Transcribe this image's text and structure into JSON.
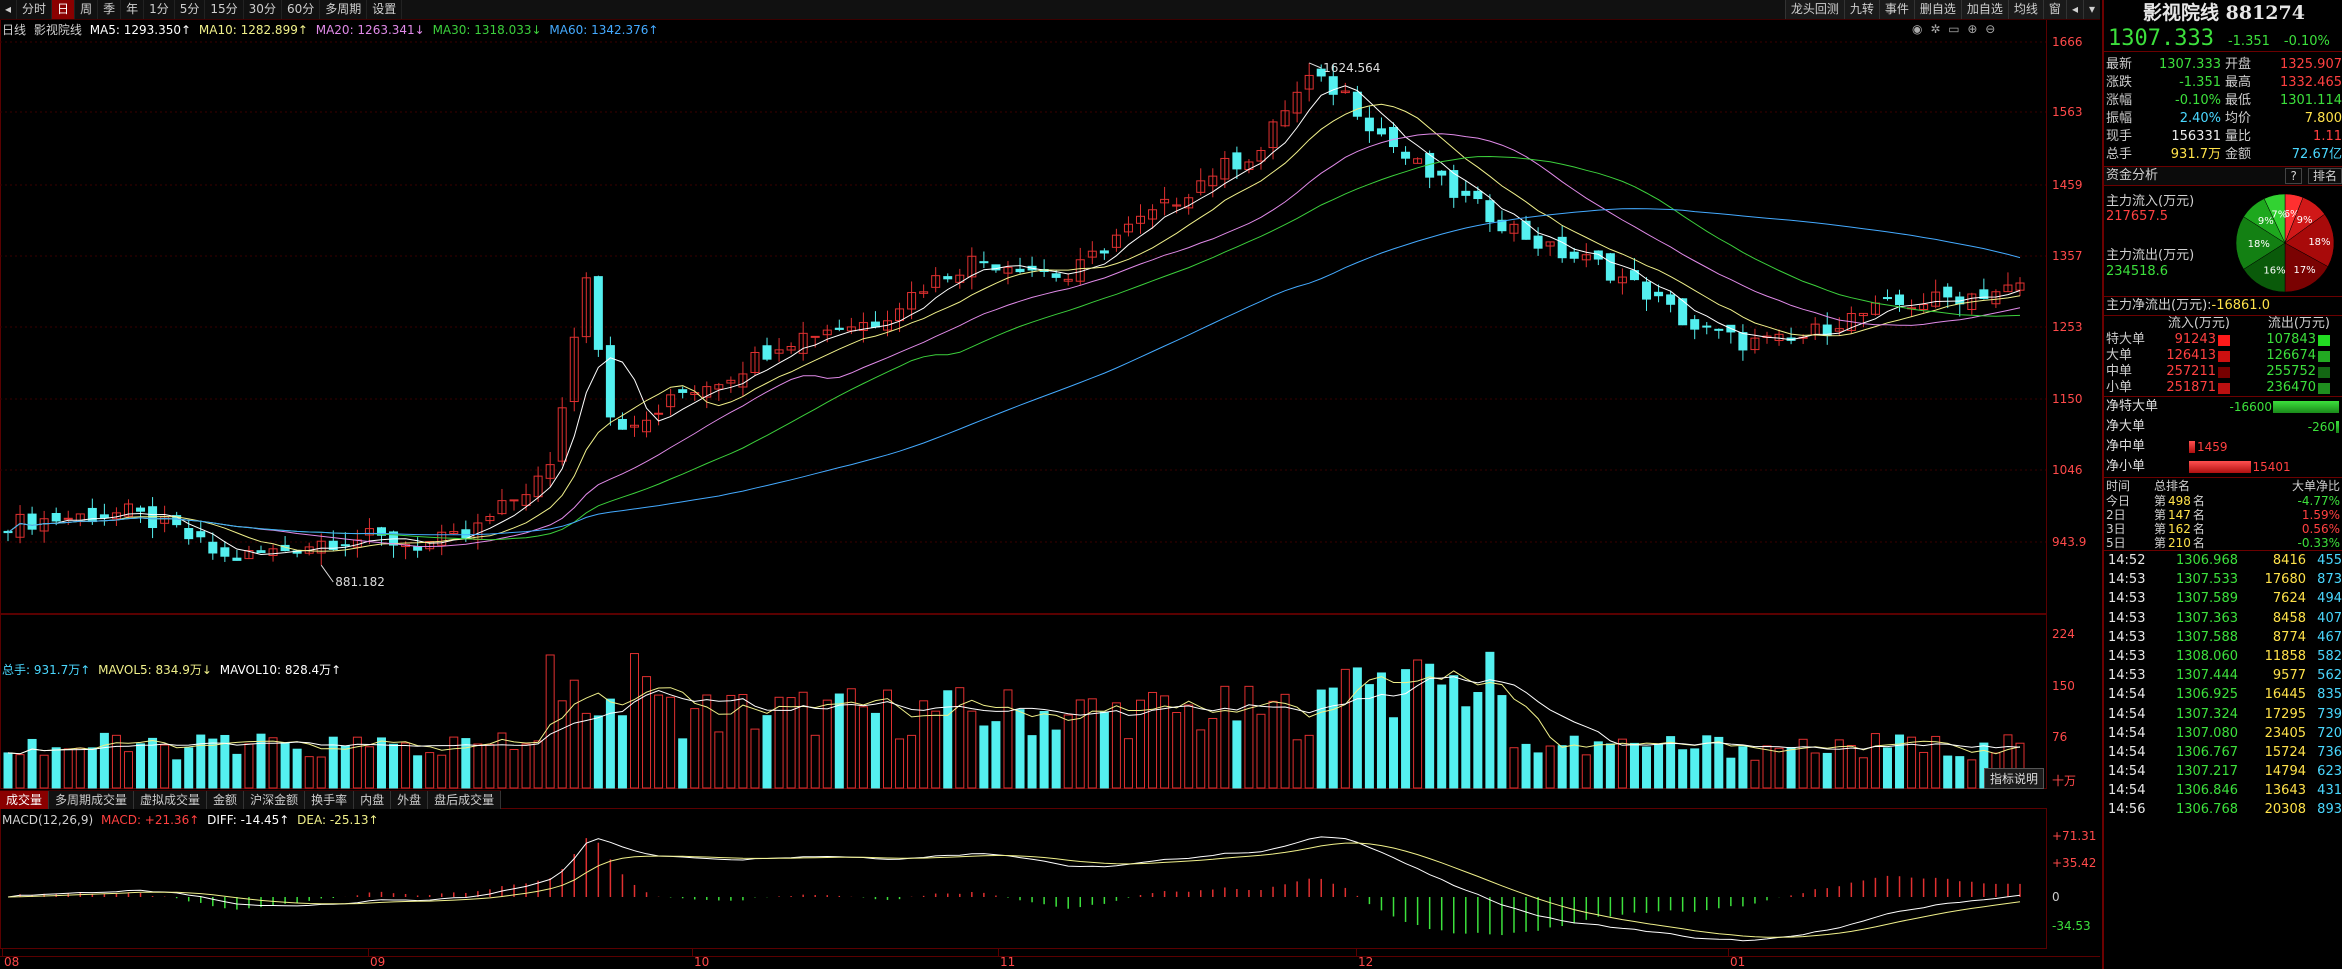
{
  "toolbar": {
    "periods": [
      "分时",
      "日",
      "周",
      "季",
      "年",
      "1分",
      "5分",
      "15分",
      "30分",
      "60分",
      "多周期",
      "设置"
    ],
    "active_period": "日",
    "right_buttons": [
      "龙头回测",
      "九转",
      "事件",
      "删自选",
      "加自选",
      "均线",
      "窗",
      "◂",
      "▾"
    ]
  },
  "kline_legend": {
    "label": "日线",
    "name": "影视院线",
    "ma5": "MA5: 1293.350↑",
    "ma10": "MA10: 1282.899↑",
    "ma20": "MA20: 1263.341↓",
    "ma30": "MA30: 1318.033↓",
    "ma60": "MA60: 1342.376↑"
  },
  "colors": {
    "up": "#e03030",
    "down": "#54f0f0",
    "ma5": "#ffffff",
    "ma10": "#f0f08a",
    "ma20": "#e08ae8",
    "ma30": "#3cd03c",
    "ma60": "#44aaff",
    "grid": "#5a0000"
  },
  "annotations": {
    "high": "1624.564",
    "low": "881.182"
  },
  "price_axis": [
    "1666",
    "1563",
    "1459",
    "1357",
    "1253",
    "1150",
    "1046",
    "943.9"
  ],
  "volume_legend": {
    "total": "总手: 931.7万↑",
    "mavol5": "MAVOL5: 834.9万↓",
    "mavol10": "MAVOL10: 828.4万↑"
  },
  "volume_axis": [
    "224",
    "150",
    "76",
    "十万"
  ],
  "indicator_tabs": [
    "成交量",
    "多周期成交量",
    "虚拟成交量",
    "金额",
    "沪深金额",
    "换手率",
    "内盘",
    "外盘",
    "盘后成交量"
  ],
  "active_indicator": "成交量",
  "help_button": "指标说明",
  "macd_legend": {
    "name": "MACD(12,26,9)",
    "macd": "MACD: +21.36↑",
    "diff": "DIFF: -14.45↑",
    "dea": "DEA: -25.13↑"
  },
  "macd_axis": [
    "+71.31",
    "+35.42",
    "0",
    "-34.53"
  ],
  "date_axis": [
    "08",
    "09",
    "10",
    "11",
    "12",
    "01"
  ],
  "panel": {
    "title": "影视院线 881274",
    "price": "1307.333",
    "change": "-1.351",
    "change_pct": "-0.10%",
    "quote": [
      {
        "l1": "最新",
        "v1": "1307.333",
        "c1": "green",
        "l2": "开盘",
        "v2": "1325.907",
        "c2": "red"
      },
      {
        "l1": "涨跌",
        "v1": "-1.351",
        "c1": "green",
        "l2": "最高",
        "v2": "1332.465",
        "c2": "red"
      },
      {
        "l1": "涨幅",
        "v1": "-0.10%",
        "c1": "green",
        "l2": "最低",
        "v2": "1301.114",
        "c2": "green"
      },
      {
        "l1": "振幅",
        "v1": "2.40%",
        "c1": "cyan",
        "l2": "均价",
        "v2": "7.800",
        "c2": "yellow"
      },
      {
        "l1": "现手",
        "v1": "156331",
        "c1": "white",
        "l2": "量比",
        "v2": "1.11",
        "c2": "red"
      },
      {
        "l1": "总手",
        "v1": "931.7万",
        "c1": "yellow",
        "l2": "金额",
        "v2": "72.67亿",
        "c2": "cyan"
      }
    ],
    "fund_title": "资金分析",
    "fund_q": "?",
    "fund_rank": "排名",
    "inflow_label": "主力流入(万元)",
    "inflow": "217657.5",
    "outflow_label": "主力流出(万元)",
    "outflow": "234518.6",
    "net_label": "主力净流出(万元):",
    "net": "-16861.0",
    "pie": [
      {
        "label": "6%",
        "pct": 6,
        "color": "#ff3030"
      },
      {
        "label": "9%",
        "pct": 9,
        "color": "#d01818"
      },
      {
        "label": "18%",
        "pct": 18,
        "color": "#a80a0a"
      },
      {
        "label": "17%",
        "pct": 17,
        "color": "#7a0202"
      },
      {
        "label": "16%",
        "pct": 16,
        "color": "#0a5a0a"
      },
      {
        "label": "18%",
        "pct": 18,
        "color": "#138013"
      },
      {
        "label": "9%",
        "pct": 9,
        "color": "#1ea81e"
      },
      {
        "label": "7%",
        "pct": 7,
        "color": "#32d232"
      }
    ],
    "flow_head": [
      "流入(万元)",
      "流出(万元)"
    ],
    "flows": [
      {
        "name": "特大单",
        "in": "91243",
        "out": "107843",
        "in_color": "#ff1a1a",
        "out_color": "#22dd22"
      },
      {
        "name": "大单",
        "in": "126413",
        "out": "126674",
        "in_color": "#cc1010",
        "out_color": "#22aa22"
      },
      {
        "name": "中单",
        "in": "257211",
        "out": "255752",
        "in_color": "#770000",
        "out_color": "#136613"
      },
      {
        "name": "小单",
        "in": "251871",
        "out": "236470",
        "in_color": "#bb1010",
        "out_color": "#1f8f1f"
      }
    ],
    "net_rows": [
      {
        "name": "净特大单",
        "value": "-16600",
        "dir": "neg",
        "frac": 0.44
      },
      {
        "name": "净大单",
        "value": "-260",
        "dir": "neg",
        "frac": 0.02
      },
      {
        "name": "净中单",
        "value": "1459",
        "dir": "pos",
        "frac": 0.04
      },
      {
        "name": "净小单",
        "value": "15401",
        "dir": "pos",
        "frac": 0.41
      }
    ],
    "rank_head": [
      "时间",
      "总排名",
      "大单净比"
    ],
    "ranks": [
      {
        "t": "今日",
        "n": "498",
        "v": "-4.77%",
        "c": "green"
      },
      {
        "t": "2日",
        "n": "147",
        "v": "1.59%",
        "c": "red"
      },
      {
        "t": "3日",
        "n": "162",
        "v": "0.56%",
        "c": "red"
      },
      {
        "t": "5日",
        "n": "210",
        "v": "-0.33%",
        "c": "green"
      }
    ],
    "rank_prefix": "第",
    "rank_suffix": "名",
    "ticks": [
      {
        "t": "14:52",
        "p": "1306.968",
        "v": "8416",
        "n": "455"
      },
      {
        "t": "14:53",
        "p": "1307.533",
        "v": "17680",
        "n": "873"
      },
      {
        "t": "14:53",
        "p": "1307.589",
        "v": "7624",
        "n": "494"
      },
      {
        "t": "14:53",
        "p": "1307.363",
        "v": "8458",
        "n": "407"
      },
      {
        "t": "14:53",
        "p": "1307.588",
        "v": "8774",
        "n": "467"
      },
      {
        "t": "14:53",
        "p": "1308.060",
        "v": "11858",
        "n": "582"
      },
      {
        "t": "14:53",
        "p": "1307.444",
        "v": "9577",
        "n": "562"
      },
      {
        "t": "14:54",
        "p": "1306.925",
        "v": "16445",
        "n": "835"
      },
      {
        "t": "14:54",
        "p": "1307.324",
        "v": "17295",
        "n": "739"
      },
      {
        "t": "14:54",
        "p": "1307.080",
        "v": "23405",
        "n": "720"
      },
      {
        "t": "14:54",
        "p": "1306.767",
        "v": "15724",
        "n": "736"
      },
      {
        "t": "14:54",
        "p": "1307.217",
        "v": "14794",
        "n": "623"
      },
      {
        "t": "14:54",
        "p": "1306.846",
        "v": "13643",
        "n": "431"
      },
      {
        "t": "14:56",
        "p": "1306.768",
        "v": "20308",
        "n": "893"
      }
    ]
  }
}
